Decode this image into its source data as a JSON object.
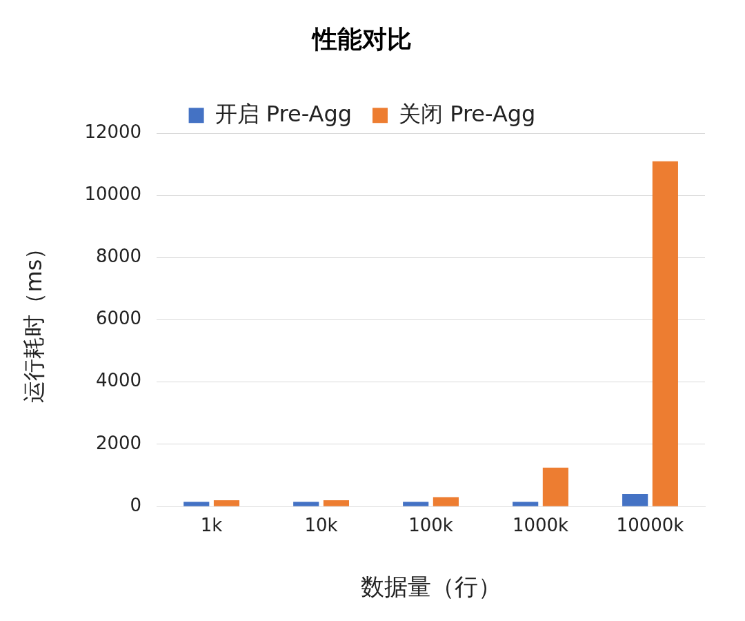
{
  "chart_data": {
    "type": "bar",
    "title": "性能对比",
    "xlabel": "数据量（行）",
    "ylabel": "运行耗时（ms）",
    "categories": [
      "1k",
      "10k",
      "100k",
      "1000k",
      "10000k"
    ],
    "series": [
      {
        "name": "开启 Pre-Agg",
        "color": "#4472c4",
        "values": [
          150,
          150,
          150,
          150,
          400
        ]
      },
      {
        "name": "关闭 Pre-Agg",
        "color": "#ed7d31",
        "values": [
          200,
          200,
          300,
          1250,
          11100
        ]
      }
    ],
    "ylim": [
      0,
      12000
    ],
    "yticks": [
      0,
      2000,
      4000,
      6000,
      8000,
      10000,
      12000
    ],
    "grid": "y",
    "legend": "top"
  }
}
